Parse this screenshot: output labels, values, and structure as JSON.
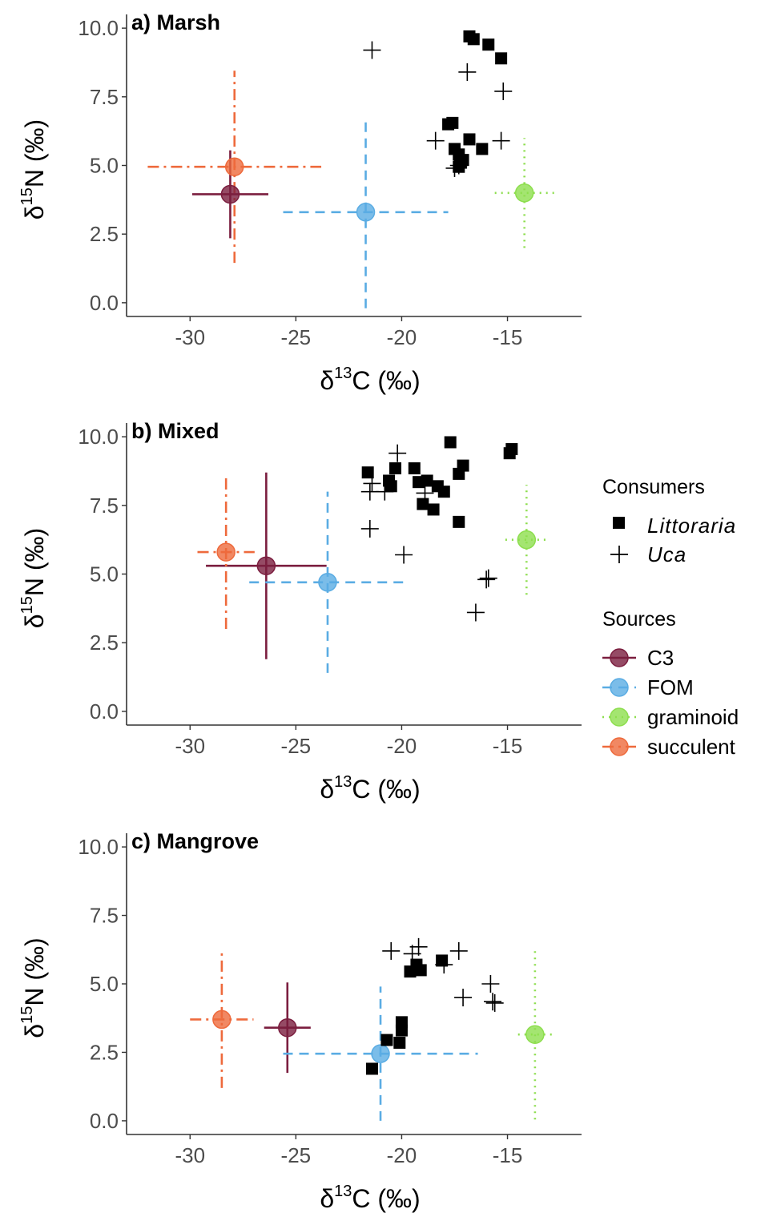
{
  "chart_data": [
    {
      "type": "scatter",
      "title": "a) Marsh",
      "xlabel_prefix": "δ",
      "xlabel_sup": "13",
      "xlabel_suffix": "C (‰)",
      "ylabel_prefix": "δ",
      "ylabel_sup": "15",
      "ylabel_suffix": "N (‰)",
      "xlim": [
        -33,
        -11.5
      ],
      "ylim": [
        -0.5,
        10.5
      ],
      "xticks": [
        -30,
        -25,
        -20,
        -15
      ],
      "xtick_labels": [
        "-30",
        "-25",
        "-20",
        "-15"
      ],
      "yticks": [
        0,
        2.5,
        5,
        7.5,
        10
      ],
      "ytick_labels": [
        "0.0",
        "2.5",
        "5.0",
        "7.5",
        "10.0"
      ],
      "grid": false,
      "consumers": {
        "Littoraria": [
          [
            -16.8,
            9.7
          ],
          [
            -16.6,
            9.6
          ],
          [
            -15.9,
            9.4
          ],
          [
            -15.3,
            8.9
          ],
          [
            -17.8,
            6.5
          ],
          [
            -17.6,
            6.55
          ],
          [
            -17.5,
            5.6
          ],
          [
            -17.3,
            5.4
          ],
          [
            -17.1,
            5.2
          ],
          [
            -16.8,
            5.95
          ],
          [
            -16.2,
            5.6
          ],
          [
            -17.2,
            5.1
          ],
          [
            -17.3,
            4.95
          ]
        ],
        "Uca": [
          [
            -21.4,
            9.2
          ],
          [
            -16.9,
            8.4
          ],
          [
            -15.2,
            7.7
          ],
          [
            -18.4,
            5.9
          ],
          [
            -15.3,
            5.9
          ],
          [
            -17.3,
            5.0
          ],
          [
            -17.5,
            4.9
          ]
        ]
      },
      "sources": [
        {
          "name": "C3",
          "x": -28.1,
          "y": 3.95,
          "xerr": 1.8,
          "yerr": 1.6
        },
        {
          "name": "FOM",
          "x": -21.7,
          "y": 3.3,
          "xerr": 3.9,
          "yerr": 3.5
        },
        {
          "name": "graminoid",
          "x": -14.2,
          "y": 4.0,
          "xerr": 1.4,
          "yerr": 2.0
        },
        {
          "name": "succulent",
          "x": -27.9,
          "y": 4.95,
          "xerr": 4.1,
          "yerr": 3.5
        }
      ]
    },
    {
      "type": "scatter",
      "title": "b) Mixed",
      "xlabel_prefix": "δ",
      "xlabel_sup": "13",
      "xlabel_suffix": "C (‰)",
      "ylabel_prefix": "δ",
      "ylabel_sup": "15",
      "ylabel_suffix": "N (‰)",
      "xlim": [
        -33,
        -11.5
      ],
      "ylim": [
        -0.5,
        10.5
      ],
      "xticks": [
        -30,
        -25,
        -20,
        -15
      ],
      "xtick_labels": [
        "-30",
        "-25",
        "-20",
        "-15"
      ],
      "yticks": [
        0,
        2.5,
        5,
        7.5,
        10
      ],
      "ytick_labels": [
        "0.0",
        "2.5",
        "5.0",
        "7.5",
        "10.0"
      ],
      "grid": false,
      "consumers": {
        "Littoraria": [
          [
            -21.6,
            8.7
          ],
          [
            -20.6,
            8.4
          ],
          [
            -20.5,
            8.2
          ],
          [
            -20.3,
            8.85
          ],
          [
            -19.4,
            8.85
          ],
          [
            -19.2,
            8.35
          ],
          [
            -18.8,
            8.4
          ],
          [
            -18.3,
            8.2
          ],
          [
            -18.0,
            8.0
          ],
          [
            -19.0,
            7.55
          ],
          [
            -18.5,
            7.35
          ],
          [
            -17.7,
            9.8
          ],
          [
            -17.1,
            8.95
          ],
          [
            -17.3,
            8.65
          ],
          [
            -17.3,
            6.9
          ],
          [
            -14.9,
            9.4
          ],
          [
            -14.8,
            9.55
          ]
        ],
        "Uca": [
          [
            -20.2,
            9.4
          ],
          [
            -21.4,
            8.3
          ],
          [
            -21.5,
            8.0
          ],
          [
            -20.8,
            8.0
          ],
          [
            -18.9,
            7.95
          ],
          [
            -21.5,
            6.65
          ],
          [
            -19.9,
            5.7
          ],
          [
            -16.0,
            4.8
          ],
          [
            -15.9,
            4.85
          ],
          [
            -16.5,
            3.6
          ]
        ]
      },
      "sources": [
        {
          "name": "C3",
          "x": -26.4,
          "y": 5.3,
          "xerr": 2.85,
          "yerr": 3.4
        },
        {
          "name": "FOM",
          "x": -23.5,
          "y": 4.7,
          "xerr": 3.7,
          "yerr": 3.3
        },
        {
          "name": "graminoid",
          "x": -14.1,
          "y": 6.25,
          "xerr": 1.0,
          "yerr": 2.0
        },
        {
          "name": "succulent",
          "x": -28.3,
          "y": 5.8,
          "xerr": 1.35,
          "yerr": 2.8
        }
      ]
    },
    {
      "type": "scatter",
      "title": "c) Mangrove",
      "xlabel_prefix": "δ",
      "xlabel_sup": "13",
      "xlabel_suffix": "C (‰)",
      "ylabel_prefix": "δ",
      "ylabel_sup": "15",
      "ylabel_suffix": "N (‰)",
      "xlim": [
        -33,
        -11.5
      ],
      "ylim": [
        -0.5,
        10.5
      ],
      "xticks": [
        -30,
        -25,
        -20,
        -15
      ],
      "xtick_labels": [
        "-30",
        "-25",
        "-20",
        "-15"
      ],
      "yticks": [
        0,
        2.5,
        5,
        7.5,
        10
      ],
      "ytick_labels": [
        "0.0",
        "2.5",
        "5.0",
        "7.5",
        "10.0"
      ],
      "grid": false,
      "consumers": {
        "Littoraria": [
          [
            -21.4,
            1.9
          ],
          [
            -20.7,
            2.95
          ],
          [
            -20.1,
            2.85
          ],
          [
            -20.0,
            3.3
          ],
          [
            -20.0,
            3.6
          ],
          [
            -19.6,
            5.45
          ],
          [
            -19.3,
            5.7
          ],
          [
            -19.1,
            5.5
          ],
          [
            -18.1,
            5.85
          ]
        ],
        "Uca": [
          [
            -20.5,
            6.2
          ],
          [
            -19.5,
            6.1
          ],
          [
            -19.2,
            6.35
          ],
          [
            -18.0,
            5.7
          ],
          [
            -17.3,
            6.2
          ],
          [
            -17.1,
            4.5
          ],
          [
            -15.8,
            5.0
          ],
          [
            -15.7,
            4.35
          ],
          [
            -15.6,
            4.3
          ]
        ]
      },
      "sources": [
        {
          "name": "C3",
          "x": -25.4,
          "y": 3.4,
          "xerr": 1.1,
          "yerr": 1.65
        },
        {
          "name": "FOM",
          "x": -21.0,
          "y": 2.45,
          "xerr": 4.6,
          "yerr": 2.45
        },
        {
          "name": "graminoid",
          "x": -13.7,
          "y": 3.15,
          "xerr": 0.8,
          "yerr": 3.1
        },
        {
          "name": "succulent",
          "x": -28.5,
          "y": 3.7,
          "xerr": 1.5,
          "yerr": 2.5
        }
      ]
    }
  ],
  "legend": {
    "placement": "right",
    "consumers_title": "Consumers",
    "consumers": [
      {
        "name": "Littoraria",
        "shape": "square"
      },
      {
        "name": "Uca",
        "shape": "plus"
      }
    ],
    "sources_title": "Sources",
    "sources": [
      {
        "name": "C3",
        "color": "#7B1E3F",
        "linestyle": "solid"
      },
      {
        "name": "FOM",
        "color": "#5AACE3",
        "linestyle": "dashed"
      },
      {
        "name": "graminoid",
        "color": "#8DDE4E",
        "linestyle": "dotted"
      },
      {
        "name": "succulent",
        "color": "#EE6A3C",
        "linestyle": "dotdash"
      }
    ]
  },
  "colors": {
    "C3": "#7B1E3F",
    "FOM": "#5AACE3",
    "graminoid": "#8DDE4E",
    "succulent": "#EE6A3C",
    "consumer": "#000000",
    "axis": "#333333",
    "tick_text": "#4d4d4d"
  }
}
